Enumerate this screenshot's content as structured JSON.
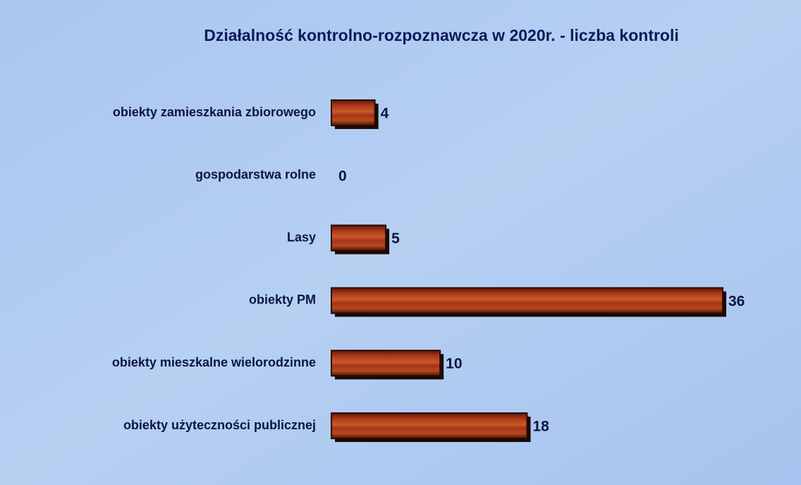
{
  "chart_data": {
    "type": "bar",
    "orientation": "horizontal",
    "title": "Działalność kontrolno-rozpoznawcza w 2020r. - liczba kontroli",
    "categories": [
      "obiekty zamieszkania zbiorowego",
      "gospodarstwa rolne",
      "Lasy",
      "obiekty PM",
      "obiekty mieszkalne wielorodzinne",
      "obiekty użyteczności publicznej"
    ],
    "values": [
      4,
      0,
      5,
      36,
      10,
      18
    ],
    "color": "#9b2a12"
  }
}
